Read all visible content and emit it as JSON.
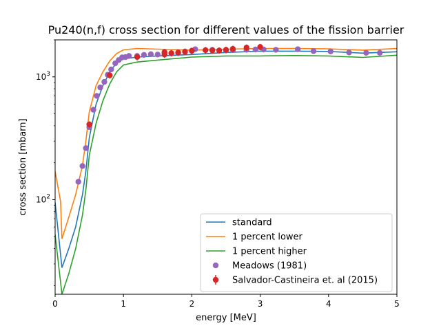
{
  "chart_data": {
    "type": "line",
    "title": "Pu240(n,f) cross section for different values of the fission barrier",
    "xlabel": "energy [MeV]",
    "ylabel": "cross section [mbarn]",
    "xlim": [
      0,
      5
    ],
    "ylim": [
      17,
      2000
    ],
    "yscale": "log",
    "grid": false,
    "legend_position": "lower-right",
    "x_ticks": [
      "0",
      "1",
      "2",
      "3",
      "4",
      "5"
    ],
    "y_ticks": [
      {
        "base": "10",
        "exp": "2",
        "value": 100
      },
      {
        "base": "10",
        "exp": "3",
        "value": 1000
      }
    ],
    "series": [
      {
        "name": "standard",
        "kind": "line",
        "color": "#1f77b4",
        "points": [
          [
            0,
            95
          ],
          [
            0.1,
            28
          ],
          [
            0.2,
            40
          ],
          [
            0.3,
            60
          ],
          [
            0.4,
            110
          ],
          [
            0.45,
            170
          ],
          [
            0.5,
            320
          ],
          [
            0.6,
            600
          ],
          [
            0.7,
            850
          ],
          [
            0.8,
            1100
          ],
          [
            0.9,
            1300
          ],
          [
            1.0,
            1400
          ],
          [
            1.2,
            1450
          ],
          [
            1.5,
            1480
          ],
          [
            2.0,
            1520
          ],
          [
            2.5,
            1580
          ],
          [
            3.0,
            1620
          ],
          [
            3.5,
            1620
          ],
          [
            4.0,
            1610
          ],
          [
            4.5,
            1560
          ],
          [
            5.0,
            1600
          ]
        ]
      },
      {
        "name": "1 percent lower",
        "kind": "line",
        "color": "#ff7f0e",
        "points": [
          [
            0,
            170
          ],
          [
            0.08,
            97
          ],
          [
            0.1,
            48
          ],
          [
            0.2,
            72
          ],
          [
            0.3,
            110
          ],
          [
            0.4,
            190
          ],
          [
            0.45,
            300
          ],
          [
            0.5,
            520
          ],
          [
            0.6,
            850
          ],
          [
            0.7,
            1100
          ],
          [
            0.8,
            1350
          ],
          [
            0.9,
            1550
          ],
          [
            1.0,
            1660
          ],
          [
            1.2,
            1700
          ],
          [
            1.5,
            1680
          ],
          [
            2.0,
            1650
          ],
          [
            2.5,
            1680
          ],
          [
            3.0,
            1700
          ],
          [
            3.5,
            1700
          ],
          [
            4.0,
            1690
          ],
          [
            4.5,
            1650
          ],
          [
            5.0,
            1700
          ]
        ]
      },
      {
        "name": "1 percent higher",
        "kind": "line",
        "color": "#2ca02c",
        "points": [
          [
            0,
            52
          ],
          [
            0.1,
            17
          ],
          [
            0.2,
            25
          ],
          [
            0.3,
            40
          ],
          [
            0.4,
            75
          ],
          [
            0.45,
            120
          ],
          [
            0.5,
            230
          ],
          [
            0.6,
            420
          ],
          [
            0.7,
            640
          ],
          [
            0.8,
            880
          ],
          [
            0.9,
            1100
          ],
          [
            1.0,
            1250
          ],
          [
            1.2,
            1320
          ],
          [
            1.5,
            1370
          ],
          [
            2.0,
            1450
          ],
          [
            2.5,
            1480
          ],
          [
            3.0,
            1480
          ],
          [
            3.5,
            1490
          ],
          [
            4.0,
            1480
          ],
          [
            4.5,
            1440
          ],
          [
            5.0,
            1500
          ]
        ]
      },
      {
        "name": "Meadows (1981)",
        "kind": "scatter",
        "color": "#9467bd",
        "points": [
          [
            0.34,
            140
          ],
          [
            0.4,
            188
          ],
          [
            0.45,
            263
          ],
          [
            0.5,
            390
          ],
          [
            0.56,
            540
          ],
          [
            0.61,
            700
          ],
          [
            0.66,
            820
          ],
          [
            0.72,
            910
          ],
          [
            0.77,
            1040
          ],
          [
            0.82,
            1150
          ],
          [
            0.88,
            1290
          ],
          [
            0.93,
            1370
          ],
          [
            0.98,
            1440
          ],
          [
            1.03,
            1450
          ],
          [
            1.08,
            1480
          ],
          [
            1.2,
            1480
          ],
          [
            1.3,
            1510
          ],
          [
            1.4,
            1530
          ],
          [
            1.5,
            1520
          ],
          [
            1.6,
            1560
          ],
          [
            1.7,
            1550
          ],
          [
            1.8,
            1560
          ],
          [
            1.9,
            1610
          ],
          [
            2.0,
            1630
          ],
          [
            2.05,
            1680
          ],
          [
            2.3,
            1660
          ],
          [
            2.5,
            1640
          ],
          [
            2.6,
            1650
          ],
          [
            2.8,
            1660
          ],
          [
            2.93,
            1670
          ],
          [
            3.05,
            1670
          ],
          [
            3.23,
            1660
          ],
          [
            3.55,
            1680
          ],
          [
            3.78,
            1620
          ],
          [
            4.03,
            1610
          ],
          [
            4.3,
            1580
          ],
          [
            4.55,
            1570
          ],
          [
            4.75,
            1570
          ]
        ]
      },
      {
        "name": "Salvador-Castineira et. al (2015)",
        "kind": "errorbar",
        "color": "#d62728",
        "points": [
          [
            0.5,
            410
          ],
          [
            0.8,
            1030
          ],
          [
            1.2,
            1450
          ],
          [
            1.6,
            1520
          ],
          [
            1.6,
            1590
          ],
          [
            1.7,
            1560
          ],
          [
            1.8,
            1580
          ],
          [
            1.9,
            1600
          ],
          [
            2.0,
            1630
          ],
          [
            2.2,
            1650
          ],
          [
            2.3,
            1640
          ],
          [
            2.4,
            1640
          ],
          [
            2.5,
            1660
          ],
          [
            2.6,
            1690
          ],
          [
            2.8,
            1730
          ],
          [
            3.0,
            1750
          ]
        ],
        "error": 0.06
      }
    ]
  }
}
